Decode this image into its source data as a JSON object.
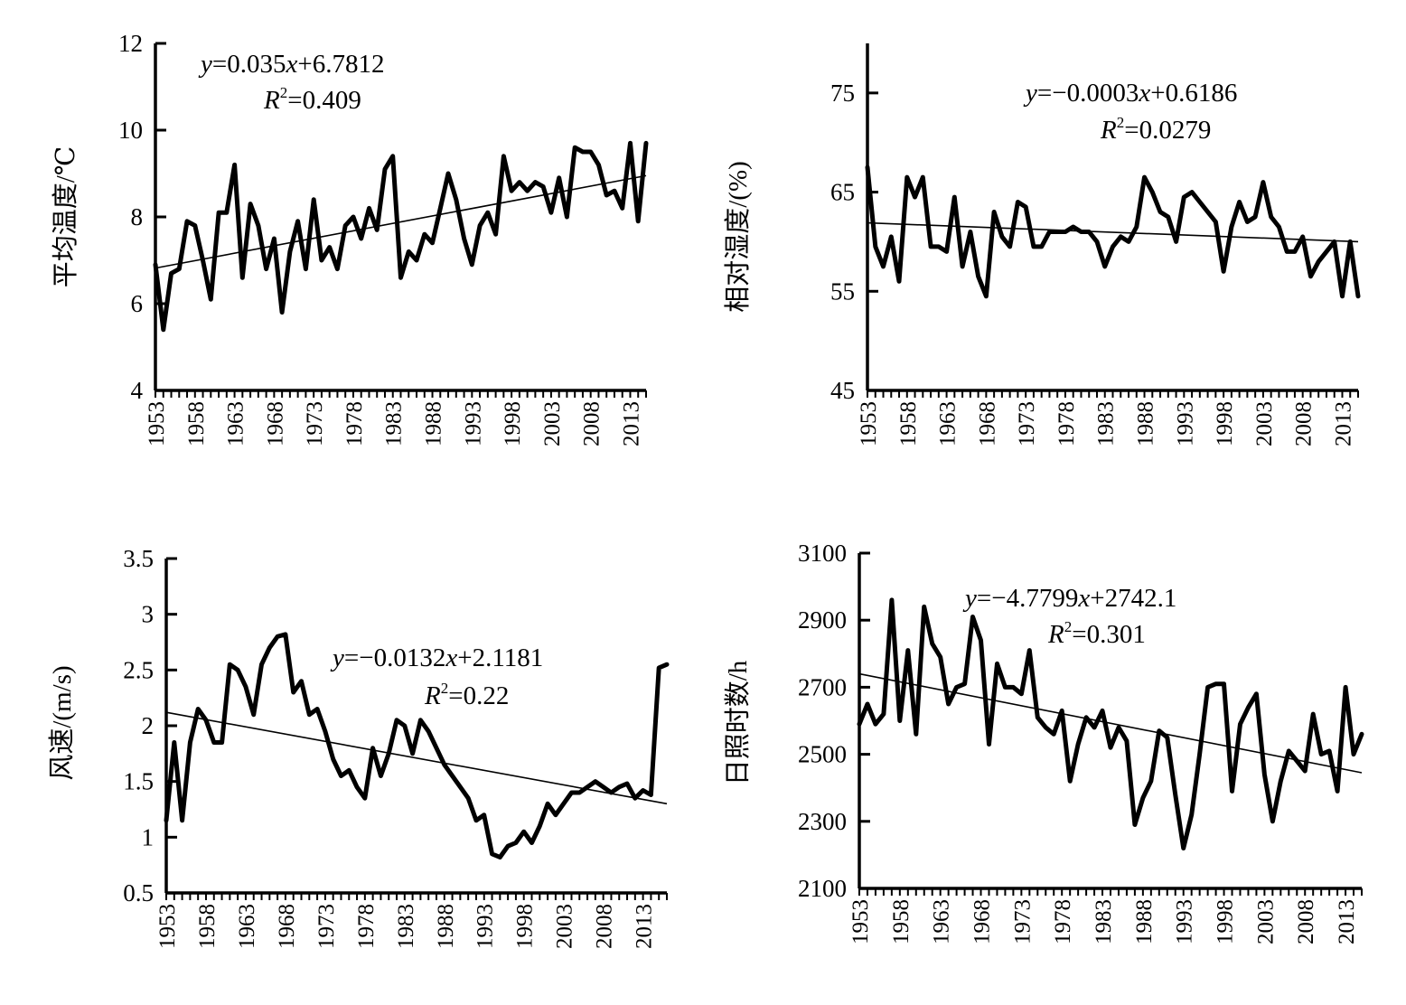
{
  "colors": {
    "line": "#000000",
    "background": "#ffffff"
  },
  "chart_data": [
    {
      "type": "line",
      "ylabel": "平均温度/℃",
      "xlabel": "",
      "ylim": [
        4,
        12
      ],
      "yticks": [
        "4",
        "6",
        "8",
        "10",
        "12"
      ],
      "xlim": [
        1953,
        2015
      ],
      "xticks": [
        "1953",
        "1958",
        "1963",
        "1968",
        "1973",
        "1978",
        "1983",
        "1988",
        "1993",
        "1998",
        "2003",
        "2008",
        "2013"
      ],
      "equation": {
        "y_var": "y",
        "rhs": "=0.035",
        "x_var": "x",
        "rest": "+6.7812"
      },
      "r2": {
        "r": "R",
        "sup": "2",
        "value": "=0.409"
      },
      "trend": [
        [
          1953,
          6.82
        ],
        [
          2015,
          8.95
        ]
      ],
      "x": [
        1953,
        1954,
        1955,
        1956,
        1957,
        1958,
        1959,
        1960,
        1961,
        1962,
        1963,
        1964,
        1965,
        1966,
        1967,
        1968,
        1969,
        1970,
        1971,
        1972,
        1973,
        1974,
        1975,
        1976,
        1977,
        1978,
        1979,
        1980,
        1981,
        1982,
        1983,
        1984,
        1985,
        1986,
        1987,
        1988,
        1989,
        1990,
        1991,
        1992,
        1993,
        1994,
        1995,
        1996,
        1997,
        1998,
        1999,
        2000,
        2001,
        2002,
        2003,
        2004,
        2005,
        2006,
        2007,
        2008,
        2009,
        2010,
        2011,
        2012,
        2013,
        2014,
        2015
      ],
      "values": [
        6.9,
        5.4,
        6.7,
        6.8,
        7.9,
        7.8,
        7.0,
        6.1,
        8.1,
        8.1,
        9.2,
        6.6,
        8.3,
        7.8,
        6.8,
        7.5,
        5.8,
        7.2,
        7.9,
        6.8,
        8.4,
        7.0,
        7.3,
        6.8,
        7.8,
        8.0,
        7.5,
        8.2,
        7.7,
        9.1,
        9.4,
        6.6,
        7.2,
        7.0,
        7.6,
        7.4,
        8.2,
        9.0,
        8.4,
        7.5,
        6.9,
        7.8,
        8.1,
        7.6,
        9.4,
        8.6,
        8.8,
        8.6,
        8.8,
        8.7,
        8.1,
        8.9,
        8.0,
        9.6,
        9.5,
        9.5,
        9.2,
        8.5,
        8.6,
        8.2,
        9.7,
        7.9,
        9.7
      ]
    },
    {
      "type": "line",
      "ylabel": "相对湿度/(%)",
      "xlabel": "",
      "ylim": [
        45,
        80
      ],
      "yticks": [
        "45",
        "55",
        "65",
        "75"
      ],
      "xlim": [
        1953,
        2015
      ],
      "xticks": [
        "1953",
        "1958",
        "1963",
        "1968",
        "1973",
        "1978",
        "1983",
        "1988",
        "1993",
        "1998",
        "2003",
        "2008",
        "2013"
      ],
      "equation": {
        "y_var": "y",
        "rhs": "=−0.0003",
        "x_var": "x",
        "rest": "+0.6186"
      },
      "r2": {
        "r": "R",
        "sup": "2",
        "value": "=0.0279"
      },
      "trend": [
        [
          1953,
          61.9
        ],
        [
          2015,
          60.0
        ]
      ],
      "x": [
        1953,
        1954,
        1955,
        1956,
        1957,
        1958,
        1959,
        1960,
        1961,
        1962,
        1963,
        1964,
        1965,
        1966,
        1967,
        1968,
        1969,
        1970,
        1971,
        1972,
        1973,
        1974,
        1975,
        1976,
        1977,
        1978,
        1979,
        1980,
        1981,
        1982,
        1983,
        1984,
        1985,
        1986,
        1987,
        1988,
        1989,
        1990,
        1991,
        1992,
        1993,
        1994,
        1995,
        1996,
        1997,
        1998,
        1999,
        2000,
        2001,
        2002,
        2003,
        2004,
        2005,
        2006,
        2007,
        2008,
        2009,
        2010,
        2011,
        2012,
        2013,
        2014,
        2015
      ],
      "values": [
        67.5,
        59.5,
        57.5,
        60.5,
        56.0,
        66.5,
        64.5,
        66.5,
        59.5,
        59.5,
        59.0,
        64.5,
        57.5,
        61.0,
        56.5,
        54.5,
        63.0,
        60.5,
        59.5,
        64.0,
        63.5,
        59.5,
        59.5,
        61.0,
        61.0,
        61.0,
        61.5,
        61.0,
        61.0,
        60.0,
        57.5,
        59.5,
        60.5,
        60.0,
        61.5,
        66.5,
        65.0,
        63.0,
        62.5,
        60.0,
        64.5,
        65.0,
        64.0,
        63.0,
        62.0,
        57.0,
        61.5,
        64.0,
        62.0,
        62.5,
        66.0,
        62.5,
        61.5,
        59.0,
        59.0,
        60.5,
        56.5,
        58.0,
        59.0,
        60.0,
        54.5,
        60.0,
        54.5
      ]
    },
    {
      "type": "line",
      "ylabel": "风速/(m/s)",
      "xlabel": "",
      "ylim": [
        0.5,
        3.5
      ],
      "yticks": [
        "0.5",
        "1",
        "1.5",
        "2",
        "2.5",
        "3",
        "3.5"
      ],
      "xlim": [
        1953,
        2016
      ],
      "xticks": [
        "1953",
        "1958",
        "1963",
        "1968",
        "1973",
        "1978",
        "1983",
        "1988",
        "1993",
        "1998",
        "2003",
        "2008",
        "2013"
      ],
      "equation": {
        "y_var": "y",
        "rhs": "=−0.0132",
        "x_var": "x",
        "rest": "+2.1181"
      },
      "r2": {
        "r": "R",
        "sup": "2",
        "value": "=0.22"
      },
      "trend": [
        [
          1953,
          2.12
        ],
        [
          2016,
          1.3
        ]
      ],
      "x": [
        1953,
        1954,
        1955,
        1956,
        1957,
        1958,
        1959,
        1960,
        1961,
        1962,
        1963,
        1964,
        1965,
        1966,
        1967,
        1968,
        1969,
        1970,
        1971,
        1972,
        1973,
        1974,
        1975,
        1976,
        1977,
        1978,
        1979,
        1980,
        1981,
        1982,
        1983,
        1984,
        1985,
        1986,
        1987,
        1988,
        1989,
        1990,
        1991,
        1992,
        1993,
        1994,
        1995,
        1996,
        1997,
        1998,
        1999,
        2000,
        2001,
        2002,
        2003,
        2004,
        2005,
        2006,
        2007,
        2008,
        2009,
        2010,
        2011,
        2012,
        2013,
        2014,
        2015,
        2016
      ],
      "values": [
        1.15,
        1.85,
        1.15,
        1.85,
        2.15,
        2.05,
        1.85,
        1.85,
        2.55,
        2.5,
        2.35,
        2.1,
        2.55,
        2.7,
        2.8,
        2.82,
        2.3,
        2.4,
        2.1,
        2.15,
        1.95,
        1.7,
        1.55,
        1.6,
        1.45,
        1.35,
        1.8,
        1.55,
        1.75,
        2.05,
        2.0,
        1.75,
        2.05,
        1.95,
        1.8,
        1.65,
        1.55,
        1.45,
        1.35,
        1.15,
        1.2,
        0.85,
        0.82,
        0.92,
        0.95,
        1.05,
        0.95,
        1.1,
        1.3,
        1.2,
        1.3,
        1.4,
        1.4,
        1.45,
        1.5,
        1.45,
        1.4,
        1.45,
        1.48,
        1.35,
        1.42,
        1.38,
        2.52,
        2.55
      ]
    },
    {
      "type": "line",
      "ylabel": "日照时数/h",
      "xlabel": "",
      "ylim": [
        2100,
        3100
      ],
      "yticks": [
        "2100",
        "2300",
        "2500",
        "2700",
        "2900",
        "3100"
      ],
      "xlim": [
        1953,
        2015
      ],
      "xticks": [
        "1953",
        "1958",
        "1963",
        "1968",
        "1973",
        "1978",
        "1983",
        "1988",
        "1993",
        "1998",
        "2003",
        "2008",
        "2013"
      ],
      "equation": {
        "y_var": "y",
        "rhs": "=−4.7799",
        "x_var": "x",
        "rest": "+2742.1"
      },
      "r2": {
        "r": "R",
        "sup": "2",
        "value": "=0.301"
      },
      "trend": [
        [
          1953,
          2740
        ],
        [
          2015,
          2445
        ]
      ],
      "x": [
        1953,
        1954,
        1955,
        1956,
        1957,
        1958,
        1959,
        1960,
        1961,
        1962,
        1963,
        1964,
        1965,
        1966,
        1967,
        1968,
        1969,
        1970,
        1971,
        1972,
        1973,
        1974,
        1975,
        1976,
        1977,
        1978,
        1979,
        1980,
        1981,
        1982,
        1983,
        1984,
        1985,
        1986,
        1987,
        1988,
        1989,
        1990,
        1991,
        1992,
        1993,
        1994,
        1995,
        1996,
        1997,
        1998,
        1999,
        2000,
        2001,
        2002,
        2003,
        2004,
        2005,
        2006,
        2007,
        2008,
        2009,
        2010,
        2011,
        2012,
        2013,
        2014,
        2015
      ],
      "values": [
        2590,
        2650,
        2590,
        2620,
        2960,
        2600,
        2810,
        2560,
        2940,
        2830,
        2790,
        2650,
        2700,
        2710,
        2910,
        2840,
        2530,
        2770,
        2700,
        2700,
        2680,
        2810,
        2610,
        2580,
        2560,
        2630,
        2420,
        2530,
        2610,
        2580,
        2630,
        2520,
        2580,
        2540,
        2290,
        2370,
        2420,
        2570,
        2550,
        2380,
        2220,
        2320,
        2500,
        2700,
        2710,
        2710,
        2390,
        2590,
        2640,
        2680,
        2440,
        2300,
        2420,
        2510,
        2480,
        2450,
        2620,
        2500,
        2510,
        2390,
        2700,
        2500,
        2560
      ]
    }
  ]
}
